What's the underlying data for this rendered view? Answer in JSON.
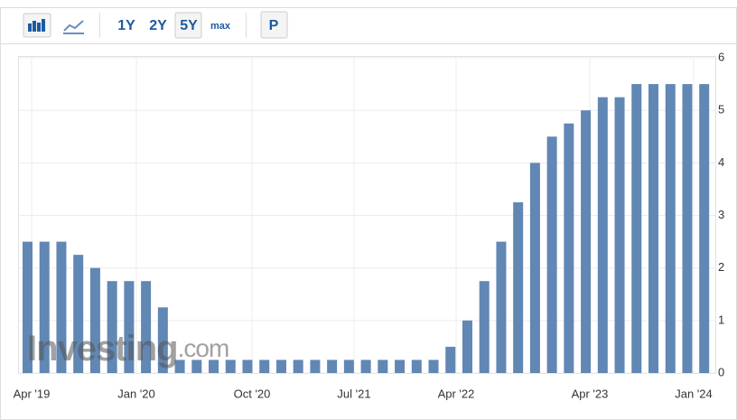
{
  "toolbar": {
    "buttons": [
      "1Y",
      "2Y",
      "5Y",
      "max",
      "P"
    ]
  },
  "chart_data": {
    "type": "bar",
    "color": "#6187b4",
    "categories": [
      null,
      null,
      null,
      null,
      null,
      null,
      null,
      null,
      null,
      null,
      null,
      null,
      null,
      null,
      null,
      null,
      null,
      null,
      null,
      null,
      null,
      null,
      null,
      null,
      null,
      null,
      null,
      null,
      null,
      null,
      null,
      null,
      null,
      null,
      null,
      null,
      null,
      null,
      null,
      null,
      null
    ],
    "values": [
      2.5,
      2.5,
      2.5,
      2.25,
      2.0,
      1.75,
      1.75,
      1.75,
      1.25,
      0.25,
      0.25,
      0.25,
      0.25,
      0.25,
      0.25,
      0.25,
      0.25,
      0.25,
      0.25,
      0.25,
      0.25,
      0.25,
      0.25,
      0.25,
      0.25,
      0.5,
      1.0,
      1.75,
      2.5,
      3.25,
      4.0,
      4.5,
      4.75,
      5.0,
      5.25,
      5.25,
      5.5,
      5.5,
      5.5,
      5.5,
      5.5
    ],
    "x_labels": [
      "Apr '19",
      "Jan '20",
      "Oct '20",
      "Jul '21",
      "Apr '22",
      "Apr '23",
      "Jan '24"
    ],
    "ylim": [
      0,
      6
    ],
    "yticks": [
      0,
      1,
      2,
      3,
      4,
      5,
      6
    ],
    "grid": true,
    "watermark": "Investing",
    "watermark_suffix": ".com"
  }
}
